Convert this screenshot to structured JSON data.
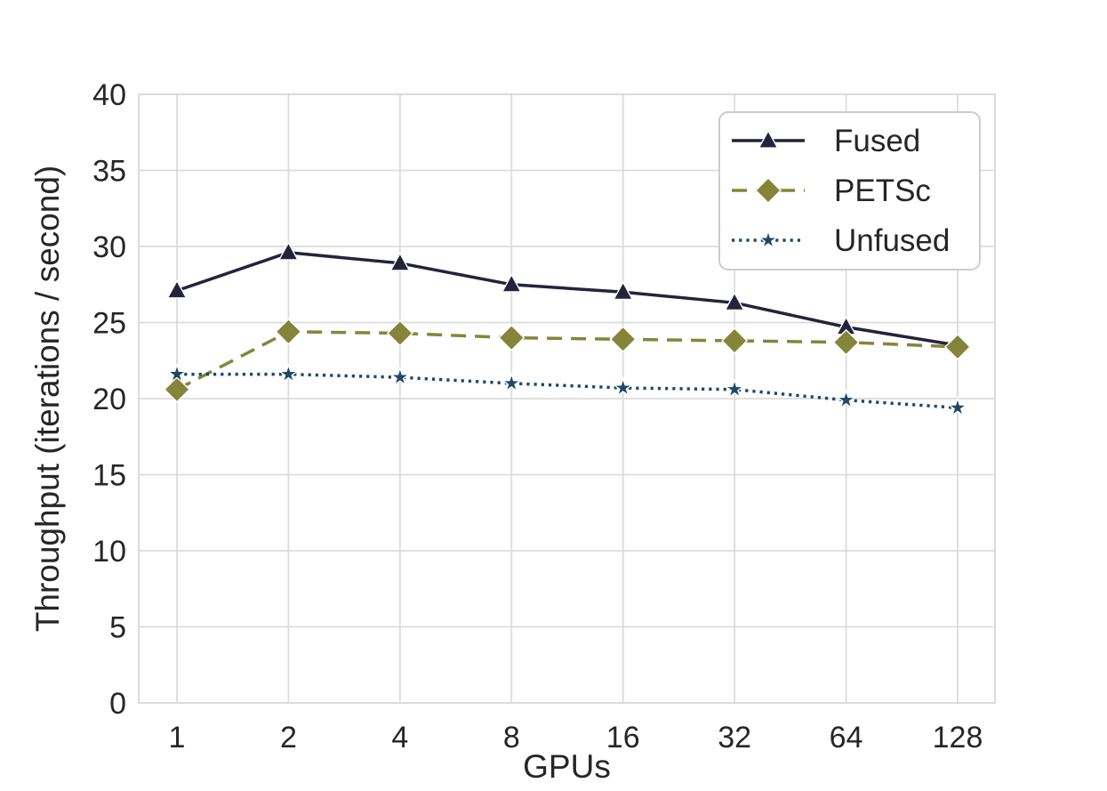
{
  "chart_data": {
    "type": "line",
    "title": "",
    "xlabel": "GPUs",
    "ylabel": "Throughput (iterations / second)",
    "x_scale": "log2",
    "categories": [
      "1",
      "2",
      "4",
      "8",
      "16",
      "32",
      "64",
      "128"
    ],
    "y_ticks": [
      "0",
      "5",
      "10",
      "15",
      "20",
      "25",
      "30",
      "35",
      "40"
    ],
    "ylim": [
      0,
      40
    ],
    "grid": true,
    "legend_position": "upper-right",
    "series": [
      {
        "name": "Fused",
        "marker": "triangle",
        "line_style": "solid",
        "color": "#23233C",
        "values": [
          27.1,
          29.6,
          28.9,
          27.5,
          27.0,
          26.3,
          24.7,
          23.5
        ]
      },
      {
        "name": "PETSc",
        "marker": "diamond",
        "line_style": "dashed",
        "color": "#85853A",
        "values": [
          20.6,
          24.4,
          24.3,
          24.0,
          23.9,
          23.8,
          23.7,
          23.4
        ]
      },
      {
        "name": "Unfused",
        "marker": "star",
        "line_style": "dotted",
        "color": "#1F4866",
        "values": [
          21.6,
          21.6,
          21.4,
          21.0,
          20.7,
          20.6,
          19.9,
          19.4
        ]
      }
    ]
  },
  "colors": {
    "background": "#ffffff",
    "grid": "#DBDBDB",
    "text": "#262626",
    "legend_border": "#CCCCCC"
  }
}
